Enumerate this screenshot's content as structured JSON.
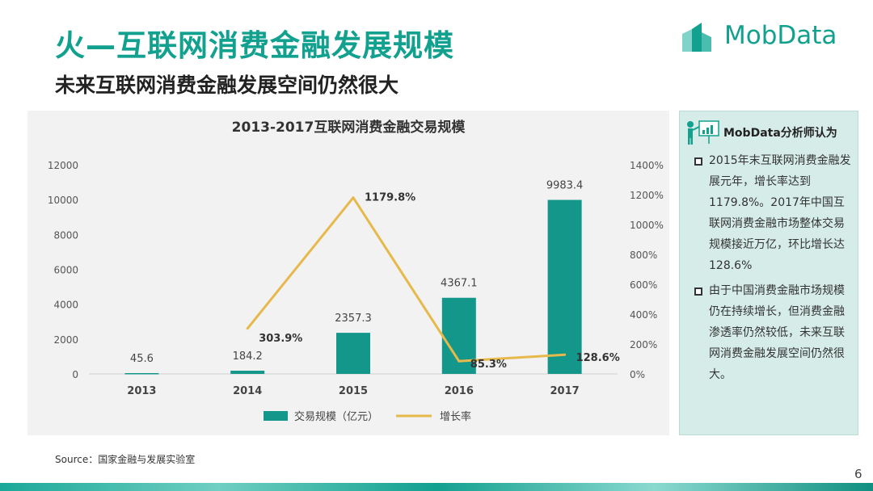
{
  "header": {
    "title": "火—互联网消费金融发展规模",
    "subtitle": "未来互联网消费金融发展空间仍然很大"
  },
  "brand": {
    "name": "MobData",
    "color": "#12a08f"
  },
  "analyst": {
    "title": "MobData分析师认为",
    "points": [
      "2015年末互联网消费金融发展元年，增长率达到1179.8%。2017年中国互联网消费金融市场整体交易规模接近万亿，环比增长达128.6%",
      "由于中国消费金融市场规模仍在持续增长，但消费金融渗透率仍然较低，未来互联网消费金融发展空间仍然很大。"
    ]
  },
  "footer": {
    "source": "Source：国家金融与发展实验室",
    "page": "6"
  },
  "chart_data": {
    "type": "bar",
    "title": "2013-2017互联网消费金融交易规模",
    "categories": [
      "2013",
      "2014",
      "2015",
      "2016",
      "2017"
    ],
    "series": [
      {
        "name": "交易规模（亿元）",
        "type": "bar",
        "axis": "left",
        "color": "#12978a",
        "values": [
          45.6,
          184.2,
          2357.3,
          4367.1,
          9983.4
        ],
        "labels": [
          "45.6",
          "184.2",
          "2357.3",
          "4367.1",
          "9983.4"
        ]
      },
      {
        "name": "增长率",
        "type": "line",
        "axis": "right",
        "color": "#e6b94a",
        "values": [
          null,
          303.9,
          1179.8,
          85.3,
          128.6
        ],
        "labels": [
          "",
          "303.9%",
          "1179.8%",
          "85.3%",
          "128.6%"
        ]
      }
    ],
    "ylim_left": [
      0,
      12000
    ],
    "yticks_left": [
      "0",
      "2000",
      "4000",
      "6000",
      "8000",
      "10000",
      "12000"
    ],
    "ylim_right": [
      0,
      1400
    ],
    "yticks_right": [
      "0%",
      "200%",
      "400%",
      "600%",
      "800%",
      "1000%",
      "1200%",
      "1400%"
    ],
    "grid": false,
    "legend": "bottom"
  }
}
